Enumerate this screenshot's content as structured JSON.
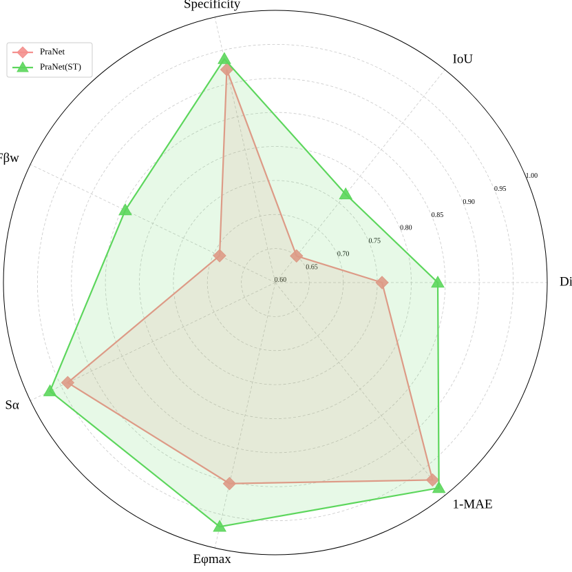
{
  "chart_data": {
    "type": "radar",
    "categories": [
      "Dice",
      "IoU",
      "Specificity",
      "Fβw",
      "Sα",
      "Eφmax",
      "1-MAE"
    ],
    "series": [
      {
        "name": "PraNet",
        "color": "#f4908e",
        "marker": "diamond",
        "values": [
          0.757,
          0.65,
          0.921,
          0.691,
          0.939,
          0.903,
          0.971
        ]
      },
      {
        "name": "PraNet(ST)",
        "color": "#5cd65c",
        "marker": "triangle",
        "values": [
          0.839,
          0.766,
          0.937,
          0.845,
          0.968,
          0.968,
          0.986
        ]
      }
    ],
    "ylim": [
      0.6,
      1.0
    ],
    "yticks": [
      {
        "value": 0.6,
        "label": "0.60"
      },
      {
        "value": 0.65,
        "label": "0.65"
      },
      {
        "value": 0.7,
        "label": "0.70"
      },
      {
        "value": 0.75,
        "label": "0.75"
      },
      {
        "value": 0.8,
        "label": "0.80"
      },
      {
        "value": 0.85,
        "label": "0.85"
      },
      {
        "value": 0.9,
        "label": "0.90"
      },
      {
        "value": 0.95,
        "label": "0.95"
      },
      {
        "value": 1.0,
        "label": "1.00"
      }
    ],
    "grid": true,
    "legend": "upper left"
  }
}
